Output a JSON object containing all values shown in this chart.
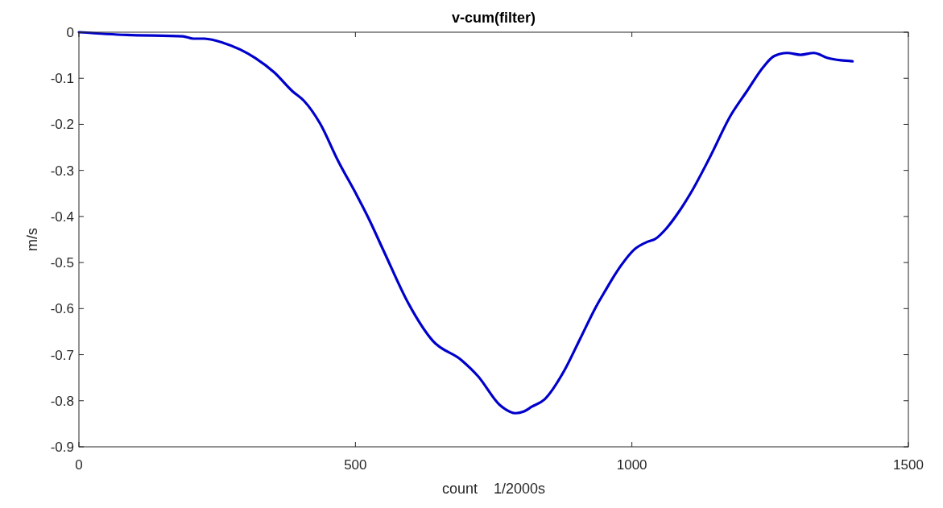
{
  "chart_data": {
    "type": "line",
    "title": "v-cum(filter)",
    "xlabel": "count    1/2000s",
    "ylabel": "m/s",
    "xlim": [
      0,
      1500
    ],
    "xticks": [
      0,
      500,
      1000,
      1500
    ],
    "ylim": [
      -0.9,
      0
    ],
    "yticks": [
      0,
      -0.1,
      -0.2,
      -0.3,
      -0.4,
      -0.5,
      -0.6,
      -0.7,
      -0.8,
      -0.9
    ],
    "series": [
      {
        "color": "#0000cc",
        "x": [
          0,
          86,
          188,
          207,
          226,
          261,
          319,
          353,
          386,
          407,
          436,
          469,
          503,
          523,
          552,
          596,
          640,
          692,
          722,
          761,
          790,
          805,
          819,
          842,
          878,
          907,
          936,
          950,
          980,
          1004,
          1028,
          1042,
          1063,
          1086,
          1106,
          1140,
          1179,
          1208,
          1238,
          1257,
          1281,
          1305,
          1329,
          1354,
          1378,
          1399
        ],
        "values": [
          0,
          -0.006,
          -0.009,
          -0.014,
          -0.014,
          -0.023,
          -0.056,
          -0.087,
          -0.128,
          -0.149,
          -0.198,
          -0.28,
          -0.355,
          -0.402,
          -0.477,
          -0.589,
          -0.67,
          -0.712,
          -0.747,
          -0.809,
          -0.827,
          -0.823,
          -0.813,
          -0.797,
          -0.734,
          -0.664,
          -0.594,
          -0.565,
          -0.507,
          -0.472,
          -0.455,
          -0.449,
          -0.425,
          -0.388,
          -0.35,
          -0.274,
          -0.18,
          -0.128,
          -0.075,
          -0.052,
          -0.045,
          -0.049,
          -0.045,
          -0.056,
          -0.061,
          -0.063
        ]
      }
    ]
  }
}
